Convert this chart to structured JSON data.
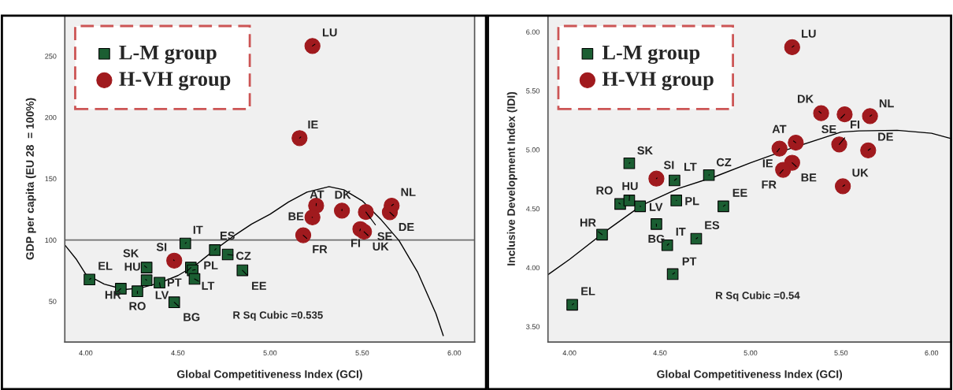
{
  "chart_data": [
    {
      "type": "scatter",
      "xlabel": "Global Competitiveness Index (GCI)",
      "ylabel": "GDP per capita (EU 28  = 100%)",
      "xlim": [
        3.886,
        6.11
      ],
      "ylim": [
        16.8,
        283
      ],
      "xticks": [
        {
          "value": 4,
          "label": "4.00"
        },
        {
          "value": 4.5,
          "label": "4.50"
        },
        {
          "value": 5,
          "label": "5.00"
        },
        {
          "value": 5.5,
          "label": "5.50"
        },
        {
          "value": 6,
          "label": "6.00"
        }
      ],
      "yticks": [
        50,
        100,
        150,
        200,
        250
      ],
      "grid": false,
      "legend": "top left",
      "series": [
        {
          "name": "L-M group",
          "marker": "square",
          "color": "#1b5e32",
          "x": [
            4.02,
            4.19,
            4.28,
            4.33,
            4.33,
            4.4,
            4.57,
            4.58,
            4.59,
            4.48,
            4.54,
            4.7,
            4.77,
            4.85
          ],
          "values": [
            67.8,
            60.3,
            58.2,
            67.2,
            77.5,
            65.2,
            77.5,
            75.3,
            68.3,
            49.2,
            97.2,
            91.8,
            88.2,
            75.3
          ]
        },
        {
          "name": "H-VH group",
          "marker": "circle",
          "color": "#a01a1e",
          "x": [
            4.48,
            5.23,
            5.16,
            5.25,
            5.23,
            5.18,
            5.39,
            5.52,
            5.66,
            5.65,
            5.49,
            5.51
          ],
          "values": [
            83.2,
            258.2,
            183.1,
            128.0,
            118.5,
            103.9,
            123.9,
            122.8,
            128.0,
            122.7,
            108.9,
            106.8
          ]
        },
        {
          "type": "line",
          "color": "#000000",
          "x": [
            3.886,
            3.95,
            4.0,
            4.1,
            4.21,
            4.3,
            4.4,
            4.5,
            4.6,
            4.7,
            4.8,
            4.9,
            5.0,
            5.1,
            5.2,
            5.32,
            5.4,
            5.5,
            5.6,
            5.7,
            5.8,
            5.9,
            5.94
          ],
          "values": [
            96,
            84,
            72,
            64,
            59.6,
            61,
            65,
            71,
            80,
            92,
            103,
            113,
            121,
            131,
            139,
            143.5,
            141,
            132,
            117,
            99.5,
            74,
            40,
            22
          ]
        }
      ],
      "ref_lines": [
        {
          "axis": "y",
          "value": 100,
          "color": "#707070"
        }
      ],
      "annotations": [
        {
          "text": "EL",
          "x": 4.02,
          "y": 67.8
        },
        {
          "text": "HR",
          "x": 4.19,
          "y": 60.3
        },
        {
          "text": "RO",
          "x": 4.28,
          "y": 58.2
        },
        {
          "text": "HU",
          "x": 4.33,
          "y": 67.2
        },
        {
          "text": "SK",
          "x": 4.33,
          "y": 77.5
        },
        {
          "text": "LV",
          "x": 4.4,
          "y": 65.2
        },
        {
          "text": "PT",
          "x": 4.57,
          "y": 77.5
        },
        {
          "text": "PL",
          "x": 4.58,
          "y": 75.3
        },
        {
          "text": "LT",
          "x": 4.59,
          "y": 68.3
        },
        {
          "text": "BG",
          "x": 4.48,
          "y": 49.2
        },
        {
          "text": "IT",
          "x": 4.54,
          "y": 97.2
        },
        {
          "text": "ES",
          "x": 4.7,
          "y": 91.8
        },
        {
          "text": "CZ",
          "x": 4.77,
          "y": 88.2
        },
        {
          "text": "EE",
          "x": 4.85,
          "y": 75.3
        },
        {
          "text": "SI",
          "x": 4.48,
          "y": 83.2
        },
        {
          "text": "LU",
          "x": 5.23,
          "y": 258.2
        },
        {
          "text": "IE",
          "x": 5.16,
          "y": 183.1
        },
        {
          "text": "AT",
          "x": 5.25,
          "y": 128.0
        },
        {
          "text": "BE",
          "x": 5.23,
          "y": 118.5
        },
        {
          "text": "FR",
          "x": 5.18,
          "y": 103.9
        },
        {
          "text": "DK",
          "x": 5.39,
          "y": 123.9
        },
        {
          "text": "SE",
          "x": 5.52,
          "y": 122.8
        },
        {
          "text": "NL",
          "x": 5.66,
          "y": 128.0
        },
        {
          "text": "DE",
          "x": 5.65,
          "y": 122.7
        },
        {
          "text": "FI",
          "x": 5.49,
          "y": 108.9
        },
        {
          "text": "UK",
          "x": 5.51,
          "y": 106.8
        },
        "R Sq Cubic =0.535"
      ]
    },
    {
      "type": "scatter",
      "xlabel": "Global Competitiveness Index (GCI)",
      "ylabel": "Inclusive Development Index (IDI)",
      "xlim": [
        3.881,
        6.108
      ],
      "ylim": [
        3.369,
        6.138
      ],
      "xticks": [
        {
          "value": 4,
          "label": "4.00"
        },
        {
          "value": 4.5,
          "label": "4.50"
        },
        {
          "value": 5,
          "label": "5.00"
        },
        {
          "value": 5.5,
          "label": "5.50"
        },
        {
          "value": 6,
          "label": "6.00"
        }
      ],
      "yticks": [
        {
          "value": 3.5,
          "label": "3.50"
        },
        {
          "value": 4,
          "label": "4.00"
        },
        {
          "value": 4.5,
          "label": "4.50"
        },
        {
          "value": 5,
          "label": "5.00"
        },
        {
          "value": 5.5,
          "label": "5.50"
        },
        {
          "value": 6,
          "label": "6.00"
        }
      ],
      "grid": false,
      "legend": "top left",
      "series": [
        {
          "name": "L-M group",
          "marker": "square",
          "color": "#1b5e32",
          "x": [
            4.015,
            4.18,
            4.28,
            4.33,
            4.33,
            4.39,
            4.57,
            4.59,
            4.58,
            4.48,
            4.54,
            4.7,
            4.77,
            4.85
          ],
          "values": [
            3.685,
            4.28,
            4.54,
            4.57,
            4.885,
            4.52,
            3.945,
            4.57,
            4.74,
            4.37,
            4.19,
            4.245,
            4.785,
            4.52
          ]
        },
        {
          "name": "H-VH group",
          "marker": "circle",
          "color": "#a01a1e",
          "x": [
            4.48,
            5.23,
            5.16,
            5.25,
            5.23,
            5.18,
            5.39,
            5.52,
            5.66,
            5.65,
            5.49,
            5.51
          ],
          "values": [
            4.755,
            5.87,
            5.01,
            5.06,
            4.89,
            4.83,
            5.31,
            5.3,
            5.285,
            4.995,
            5.045,
            4.69
          ]
        },
        {
          "type": "line",
          "color": "#000000",
          "x": [
            3.881,
            4.0,
            4.2,
            4.4,
            4.6,
            4.8,
            5.0,
            5.2,
            5.4,
            5.5,
            5.6,
            5.81,
            6.0,
            6.108
          ],
          "values": [
            3.94,
            4.07,
            4.31,
            4.53,
            4.67,
            4.77,
            4.89,
            5.0,
            5.1,
            5.15,
            5.16,
            5.165,
            5.14,
            5.095
          ]
        }
      ],
      "annotations": [
        {
          "text": "EL",
          "x": 4.015,
          "y": 3.685
        },
        {
          "text": "HR",
          "x": 4.18,
          "y": 4.28
        },
        {
          "text": "RO",
          "x": 4.28,
          "y": 4.54
        },
        {
          "text": "HU",
          "x": 4.33,
          "y": 4.57
        },
        {
          "text": "SK",
          "x": 4.33,
          "y": 4.885
        },
        {
          "text": "LV",
          "x": 4.39,
          "y": 4.52
        },
        {
          "text": "PT",
          "x": 4.57,
          "y": 3.945
        },
        {
          "text": "PL",
          "x": 4.59,
          "y": 4.57
        },
        {
          "text": "LT",
          "x": 4.58,
          "y": 4.74
        },
        {
          "text": "BG",
          "x": 4.48,
          "y": 4.37
        },
        {
          "text": "IT",
          "x": 4.54,
          "y": 4.19
        },
        {
          "text": "ES",
          "x": 4.7,
          "y": 4.245
        },
        {
          "text": "CZ",
          "x": 4.77,
          "y": 4.785
        },
        {
          "text": "EE",
          "x": 4.85,
          "y": 4.52
        },
        {
          "text": "SI",
          "x": 4.48,
          "y": 4.755
        },
        {
          "text": "LU",
          "x": 5.23,
          "y": 5.87
        },
        {
          "text": "IE",
          "x": 5.16,
          "y": 5.01
        },
        {
          "text": "AT",
          "x": 5.25,
          "y": 5.06
        },
        {
          "text": "BE",
          "x": 5.23,
          "y": 4.89
        },
        {
          "text": "FR",
          "x": 5.18,
          "y": 4.83
        },
        {
          "text": "DK",
          "x": 5.39,
          "y": 5.31
        },
        {
          "text": "SE",
          "x": 5.52,
          "y": 5.3
        },
        {
          "text": "NL",
          "x": 5.66,
          "y": 5.285
        },
        {
          "text": "DE",
          "x": 5.65,
          "y": 4.995
        },
        {
          "text": "FI",
          "x": 5.49,
          "y": 5.045
        },
        {
          "text": "UK",
          "x": 5.51,
          "y": 4.69
        },
        "R Sq Cubic =0.54"
      ]
    }
  ]
}
